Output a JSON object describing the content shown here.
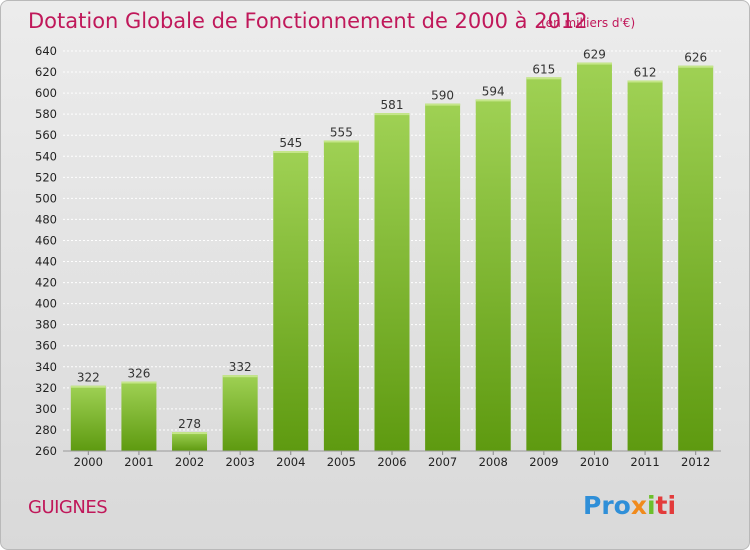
{
  "title": "Dotation Globale de Fonctionnement de 2000 à 2012",
  "unit_note": "(en milliers d'€)",
  "commune": "GUIGNES",
  "logo": {
    "p1": "Pro",
    "p2": "x",
    "p3": "i",
    "p4": "ti"
  },
  "colors": {
    "title": "#c0185a",
    "bar_light": "#9fd154",
    "bar_dark": "#5e9a10",
    "grid": "#ffffff"
  },
  "chart_data": {
    "type": "bar",
    "title": "Dotation Globale de Fonctionnement de 2000 à 2012",
    "subtitle": "(en milliers d'€)",
    "categories": [
      "2000",
      "2001",
      "2002",
      "2003",
      "2004",
      "2005",
      "2006",
      "2007",
      "2008",
      "2009",
      "2010",
      "2011",
      "2012"
    ],
    "values": [
      322,
      326,
      278,
      332,
      545,
      555,
      581,
      590,
      594,
      615,
      629,
      612,
      626
    ],
    "ylim": [
      260,
      640
    ],
    "ytick_step": 20,
    "grid": true,
    "data_labels": true
  }
}
